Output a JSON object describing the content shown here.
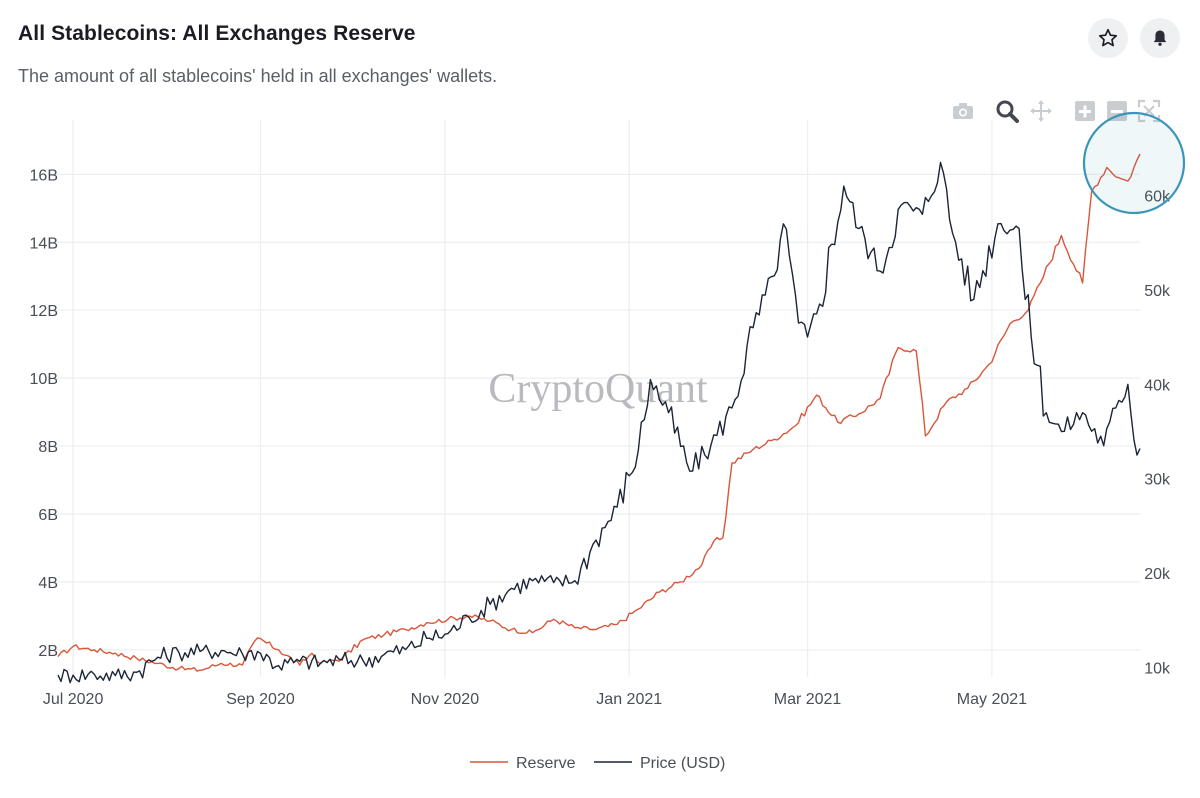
{
  "header": {
    "title": "All Stablecoins: All Exchanges Reserve",
    "subtitle": "The amount of all stablecoins' held in all exchanges' wallets."
  },
  "icons": {
    "favorite": "star-icon",
    "alerts": "bell-icon",
    "modebar": [
      "camera-icon",
      "zoom-icon",
      "pan-icon",
      "zoom-in-icon",
      "zoom-out-icon",
      "autoscale-icon"
    ]
  },
  "watermark": "CryptoQuant",
  "colors": {
    "reserve": "#d9563a",
    "price": "#1c2536",
    "grid": "#eceef1",
    "highlight": "#3a95b8"
  },
  "chart_data": {
    "type": "line",
    "title": "",
    "x_ticks": [
      "Jul 2020",
      "Sep 2020",
      "Nov 2020",
      "Jan 2021",
      "Mar 2021",
      "May 2021"
    ],
    "x_tick_dates": [
      "2020-07-01",
      "2020-09-01",
      "2020-11-01",
      "2021-01-01",
      "2021-03-01",
      "2021-05-01"
    ],
    "xlim": [
      "2020-06-26",
      "2021-06-19"
    ],
    "y_left": {
      "ticks": [
        "2B",
        "4B",
        "6B",
        "8B",
        "10B",
        "12B",
        "14B",
        "16B"
      ],
      "ylim": [
        1.2,
        17.6
      ]
    },
    "y_right": {
      "ticks": [
        "10k",
        "20k",
        "30k",
        "40k",
        "50k",
        "60k"
      ],
      "ylim": [
        9000,
        68000
      ]
    },
    "legend_position": "bottom-center",
    "grid": true,
    "series": [
      {
        "name": "Reserve",
        "axis": "left",
        "unit": "B",
        "points": [
          [
            "2020-06-26",
            1.8
          ],
          [
            "2020-07-01",
            2.1
          ],
          [
            "2020-07-08",
            2.0
          ],
          [
            "2020-07-15",
            1.9
          ],
          [
            "2020-07-22",
            1.75
          ],
          [
            "2020-07-29",
            1.6
          ],
          [
            "2020-08-05",
            1.45
          ],
          [
            "2020-08-12",
            1.4
          ],
          [
            "2020-08-19",
            1.6
          ],
          [
            "2020-08-26",
            1.55
          ],
          [
            "2020-08-31",
            2.35
          ],
          [
            "2020-09-07",
            2.0
          ],
          [
            "2020-09-14",
            1.55
          ],
          [
            "2020-09-18",
            1.9
          ],
          [
            "2020-09-21",
            1.6
          ],
          [
            "2020-09-28",
            1.75
          ],
          [
            "2020-10-05",
            2.3
          ],
          [
            "2020-10-12",
            2.45
          ],
          [
            "2020-10-19",
            2.6
          ],
          [
            "2020-10-26",
            2.8
          ],
          [
            "2020-11-02",
            2.9
          ],
          [
            "2020-11-09",
            3.0
          ],
          [
            "2020-11-16",
            2.85
          ],
          [
            "2020-11-23",
            2.6
          ],
          [
            "2020-11-30",
            2.5
          ],
          [
            "2020-12-07",
            2.9
          ],
          [
            "2020-12-14",
            2.65
          ],
          [
            "2020-12-21",
            2.6
          ],
          [
            "2020-12-28",
            2.75
          ],
          [
            "2021-01-04",
            3.2
          ],
          [
            "2021-01-11",
            3.7
          ],
          [
            "2021-01-18",
            4.0
          ],
          [
            "2021-01-25",
            4.5
          ],
          [
            "2021-01-29",
            5.2
          ],
          [
            "2021-02-01",
            5.3
          ],
          [
            "2021-02-04",
            7.5
          ],
          [
            "2021-02-11",
            7.9
          ],
          [
            "2021-02-18",
            8.2
          ],
          [
            "2021-02-25",
            8.6
          ],
          [
            "2021-03-04",
            9.5
          ],
          [
            "2021-03-11",
            8.7
          ],
          [
            "2021-03-18",
            8.95
          ],
          [
            "2021-03-25",
            9.4
          ],
          [
            "2021-03-31",
            10.9
          ],
          [
            "2021-04-06",
            10.8
          ],
          [
            "2021-04-09",
            8.3
          ],
          [
            "2021-04-16",
            9.3
          ],
          [
            "2021-04-23",
            9.7
          ],
          [
            "2021-04-30",
            10.4
          ],
          [
            "2021-05-07",
            11.6
          ],
          [
            "2021-05-13",
            12.0
          ],
          [
            "2021-05-17",
            12.8
          ],
          [
            "2021-05-24",
            14.2
          ],
          [
            "2021-05-31",
            12.8
          ],
          [
            "2021-06-03",
            15.5
          ],
          [
            "2021-06-08",
            16.2
          ],
          [
            "2021-06-12",
            15.9
          ],
          [
            "2021-06-15",
            15.8
          ],
          [
            "2021-06-19",
            16.6
          ]
        ]
      },
      {
        "name": "Price (USD)",
        "axis": "right",
        "unit": "USD",
        "points": [
          [
            "2020-06-26",
            9200
          ],
          [
            "2020-07-01",
            9200
          ],
          [
            "2020-07-08",
            9300
          ],
          [
            "2020-07-15",
            9150
          ],
          [
            "2020-07-22",
            9500
          ],
          [
            "2020-07-29",
            11100
          ],
          [
            "2020-08-05",
            11600
          ],
          [
            "2020-08-12",
            11700
          ],
          [
            "2020-08-19",
            11800
          ],
          [
            "2020-08-26",
            11450
          ],
          [
            "2020-08-31",
            11700
          ],
          [
            "2020-09-07",
            10200
          ],
          [
            "2020-09-14",
            10650
          ],
          [
            "2020-09-21",
            10500
          ],
          [
            "2020-09-28",
            10800
          ],
          [
            "2020-10-05",
            10700
          ],
          [
            "2020-10-12",
            11400
          ],
          [
            "2020-10-19",
            11900
          ],
          [
            "2020-10-26",
            13100
          ],
          [
            "2020-11-02",
            13600
          ],
          [
            "2020-11-09",
            15300
          ],
          [
            "2020-11-16",
            16700
          ],
          [
            "2020-11-23",
            18400
          ],
          [
            "2020-11-30",
            19200
          ],
          [
            "2020-12-07",
            19000
          ],
          [
            "2020-12-14",
            19200
          ],
          [
            "2020-12-21",
            23500
          ],
          [
            "2020-12-28",
            27000
          ],
          [
            "2021-01-04",
            33000
          ],
          [
            "2021-01-08",
            40500
          ],
          [
            "2021-01-14",
            37000
          ],
          [
            "2021-01-21",
            30800
          ],
          [
            "2021-01-28",
            33500
          ],
          [
            "2021-02-04",
            37500
          ],
          [
            "2021-02-11",
            46000
          ],
          [
            "2021-02-18",
            51500
          ],
          [
            "2021-02-21",
            57000
          ],
          [
            "2021-02-26",
            46500
          ],
          [
            "2021-03-01",
            45000
          ],
          [
            "2021-03-05",
            48500
          ],
          [
            "2021-03-13",
            61000
          ],
          [
            "2021-03-18",
            56500
          ],
          [
            "2021-03-25",
            52000
          ],
          [
            "2021-04-01",
            59000
          ],
          [
            "2021-04-08",
            58000
          ],
          [
            "2021-04-14",
            63500
          ],
          [
            "2021-04-18",
            56000
          ],
          [
            "2021-04-25",
            49000
          ],
          [
            "2021-05-03",
            57000
          ],
          [
            "2021-05-10",
            56500
          ],
          [
            "2021-05-12",
            49000
          ],
          [
            "2021-05-19",
            37000
          ],
          [
            "2021-05-24",
            35000
          ],
          [
            "2021-05-31",
            37000
          ],
          [
            "2021-06-07",
            33500
          ],
          [
            "2021-06-11",
            37500
          ],
          [
            "2021-06-15",
            40000
          ],
          [
            "2021-06-18",
            32500
          ],
          [
            "2021-06-19",
            33200
          ]
        ]
      }
    ]
  }
}
